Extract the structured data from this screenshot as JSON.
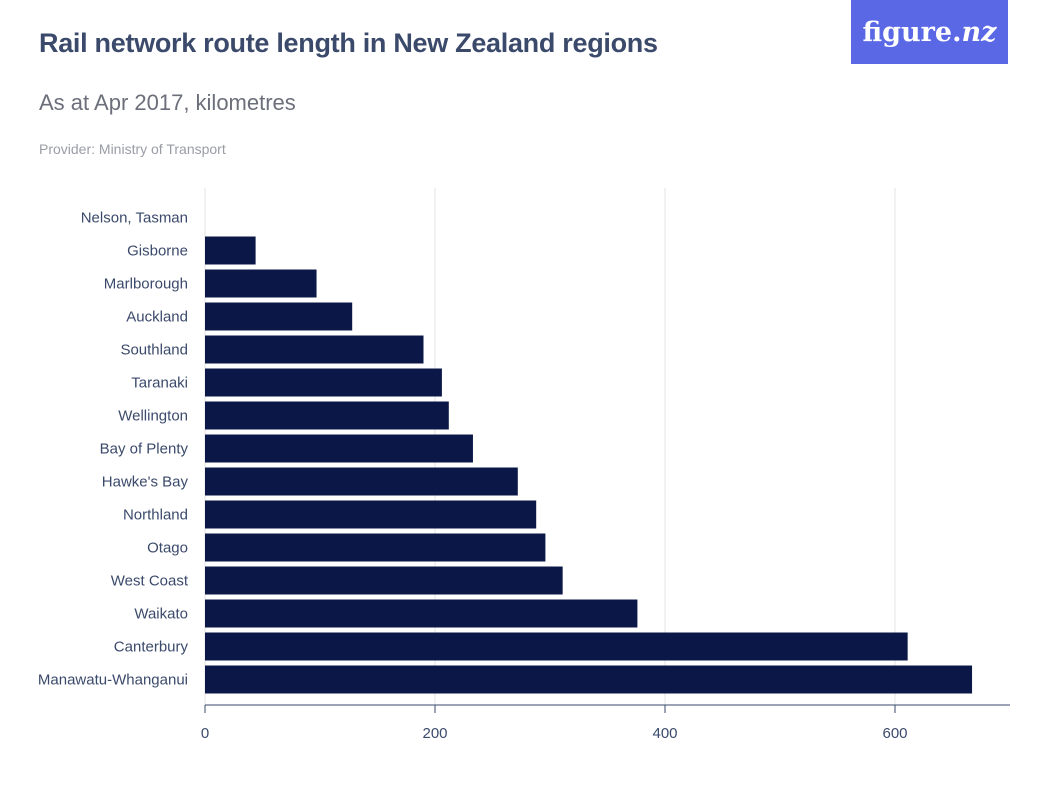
{
  "header": {
    "title": "Rail network route length in New Zealand regions",
    "subtitle": "As at Apr 2017, kilometres",
    "provider": "Provider: Ministry of Transport",
    "logo_main": "figure.",
    "logo_suffix": "nz"
  },
  "colors": {
    "bar": "#0b1847",
    "grid": "#e3e3e3",
    "axis": "#3b4a6b",
    "logo_bg": "#5a68e6"
  },
  "chart_data": {
    "type": "bar",
    "orientation": "horizontal",
    "categories": [
      "Nelson, Tasman",
      "Gisborne",
      "Marlborough",
      "Auckland",
      "Southland",
      "Taranaki",
      "Wellington",
      "Bay of Plenty",
      "Hawke's Bay",
      "Northland",
      "Otago",
      "West Coast",
      "Waikato",
      "Canterbury",
      "Manawatu-Whanganui"
    ],
    "values": [
      0,
      44,
      97,
      128,
      190,
      206,
      212,
      233,
      272,
      288,
      296,
      311,
      376,
      611,
      667
    ],
    "title": "Rail network route length in New Zealand regions",
    "subtitle": "As at Apr 2017, kilometres",
    "xlabel": "",
    "ylabel": "",
    "xlim": [
      0,
      700
    ],
    "xticks": [
      0,
      200,
      400,
      600
    ],
    "grid": true,
    "legend": "none"
  }
}
